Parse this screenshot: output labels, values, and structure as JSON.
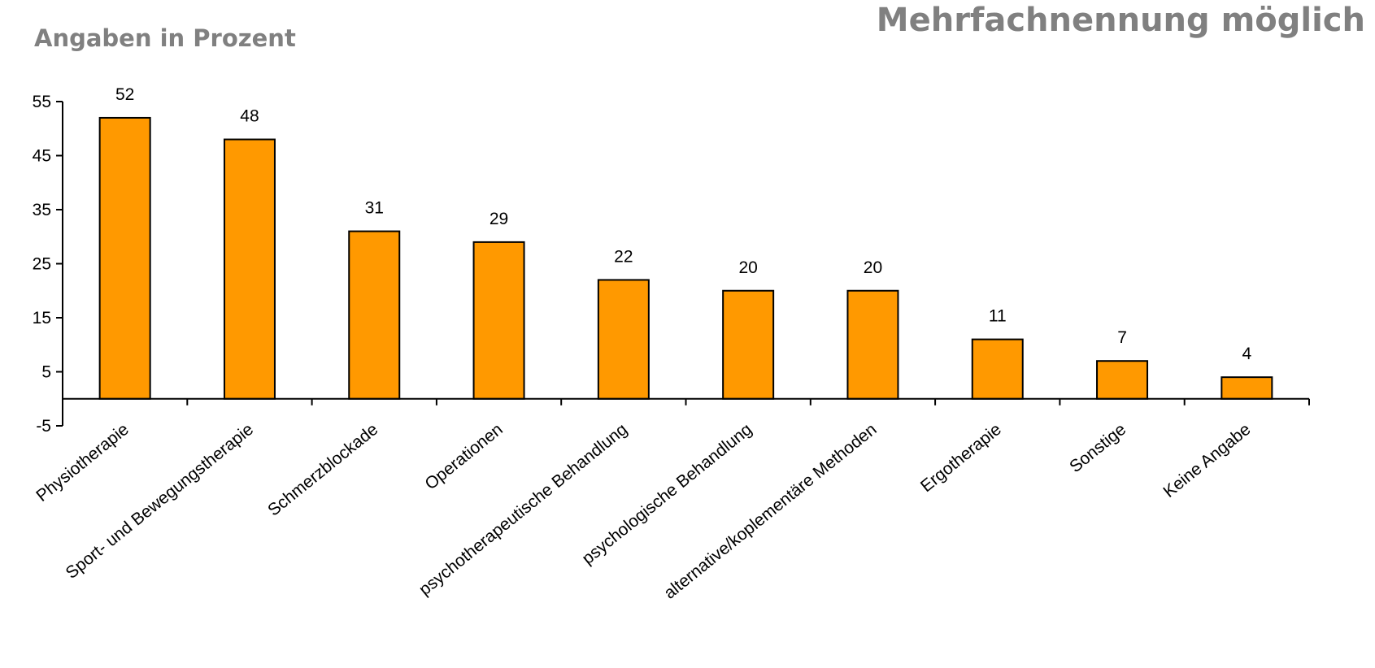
{
  "header": {
    "subtitle": "Angaben in Prozent",
    "note": "Mehrfachnennung möglich"
  },
  "chart_data": {
    "type": "bar",
    "categories": [
      "Physiotherapie",
      "Sport- und Bewegungstherapie",
      "Schmerzblockade",
      "Operationen",
      "psychotherapeutische Behandlung",
      "psychologische Behandlung",
      "alternative/koplementäre Methoden",
      "Ergotherapie",
      "Sonstige",
      "Keine Angabe"
    ],
    "values": [
      52,
      48,
      31,
      29,
      22,
      20,
      20,
      11,
      7,
      4
    ],
    "ylim": [
      -5,
      55
    ],
    "yticks": [
      -5,
      5,
      15,
      25,
      35,
      45,
      55
    ],
    "bar_color": "#FF9900",
    "bar_stroke": "#000000",
    "grid": false,
    "legend": "none"
  }
}
